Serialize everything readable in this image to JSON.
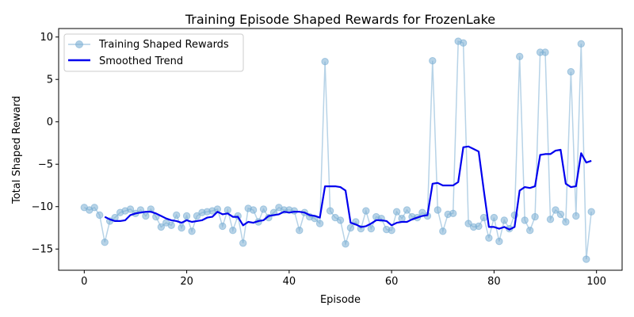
{
  "chart_data": {
    "type": "line",
    "title": "Training Episode Shaped Rewards for FrozenLake",
    "xlabel": "Episode",
    "ylabel": "Total Shaped Reward",
    "xlim": [
      -5,
      105
    ],
    "ylim": [
      -17.5,
      11
    ],
    "xticks": [
      0,
      20,
      40,
      60,
      80,
      100
    ],
    "yticks": [
      -15,
      -10,
      -5,
      0,
      5,
      10
    ],
    "grid": false,
    "legend_position": "top-left",
    "series": [
      {
        "name": "Training Shaped Rewards",
        "color": "#7bafd4",
        "marker": "circle",
        "x": [
          0,
          1,
          2,
          3,
          4,
          5,
          6,
          7,
          8,
          9,
          10,
          11,
          12,
          13,
          14,
          15,
          16,
          17,
          18,
          19,
          20,
          21,
          22,
          23,
          24,
          25,
          26,
          27,
          28,
          29,
          30,
          31,
          32,
          33,
          34,
          35,
          36,
          37,
          38,
          39,
          40,
          41,
          42,
          43,
          44,
          45,
          46,
          47,
          48,
          49,
          50,
          51,
          52,
          53,
          54,
          55,
          56,
          57,
          58,
          59,
          60,
          61,
          62,
          63,
          64,
          65,
          66,
          67,
          68,
          69,
          70,
          71,
          72,
          73,
          74,
          75,
          76,
          77,
          78,
          79,
          80,
          81,
          82,
          83,
          84,
          85,
          86,
          87,
          88,
          89,
          90,
          91,
          92,
          93,
          94,
          95,
          96,
          97,
          98,
          99
        ],
        "y": [
          -10.1,
          -10.4,
          -10.1,
          -11.0,
          -14.2,
          -11.7,
          -11.3,
          -10.7,
          -10.5,
          -10.3,
          -10.8,
          -10.4,
          -11.1,
          -10.3,
          -11.2,
          -12.4,
          -11.9,
          -12.2,
          -11.0,
          -12.5,
          -11.1,
          -12.9,
          -11.1,
          -10.7,
          -10.6,
          -10.5,
          -10.3,
          -12.3,
          -10.4,
          -12.8,
          -11.1,
          -14.3,
          -10.2,
          -10.4,
          -11.8,
          -10.3,
          -11.3,
          -10.7,
          -10.1,
          -10.4,
          -10.4,
          -10.5,
          -12.8,
          -10.7,
          -11.2,
          -11.4,
          -12.0,
          7.1,
          -10.5,
          -11.3,
          -11.6,
          -14.4,
          -12.5,
          -11.8,
          -12.6,
          -10.5,
          -12.6,
          -11.2,
          -11.4,
          -12.7,
          -12.8,
          -10.6,
          -11.4,
          -10.4,
          -11.2,
          -11.3,
          -10.7,
          -11.1,
          7.2,
          -10.4,
          -12.9,
          -10.9,
          -10.8,
          9.5,
          9.3,
          -12.0,
          -12.4,
          -12.3,
          -11.3,
          -13.7,
          -11.3,
          -14.1,
          -11.6,
          -12.6,
          -11.0,
          7.7,
          -11.6,
          -12.8,
          -11.2,
          8.2,
          8.2,
          -11.5,
          -10.4,
          -10.9,
          -11.8,
          5.9,
          -11.1,
          9.2,
          -16.2,
          -10.6
        ]
      },
      {
        "name": "Smoothed Trend",
        "color": "#0000ee",
        "x": [
          4,
          5,
          6,
          7,
          8,
          9,
          10,
          11,
          12,
          13,
          14,
          15,
          16,
          17,
          18,
          19,
          20,
          21,
          22,
          23,
          24,
          25,
          26,
          27,
          28,
          29,
          30,
          31,
          32,
          33,
          34,
          35,
          36,
          37,
          38,
          39,
          40,
          41,
          42,
          43,
          44,
          45,
          46,
          47,
          48,
          49,
          50,
          51,
          52,
          53,
          54,
          55,
          56,
          57,
          58,
          59,
          60,
          61,
          62,
          63,
          64,
          65,
          66,
          67,
          68,
          69,
          70,
          71,
          72,
          73,
          74,
          75,
          76,
          77,
          78,
          79,
          80,
          81,
          82,
          83,
          84,
          85,
          86,
          87,
          88,
          89,
          90,
          91,
          92,
          93,
          94,
          95,
          96,
          97,
          98,
          99
        ],
        "y": [
          -11.2,
          -11.5,
          -11.7,
          -11.7,
          -11.6,
          -11.0,
          -10.8,
          -10.7,
          -10.6,
          -10.6,
          -10.8,
          -11.1,
          -11.4,
          -11.6,
          -11.7,
          -11.9,
          -11.6,
          -11.8,
          -11.7,
          -11.6,
          -11.3,
          -11.2,
          -10.6,
          -10.9,
          -10.8,
          -11.2,
          -11.2,
          -12.2,
          -11.8,
          -11.9,
          -11.7,
          -11.6,
          -11.1,
          -11.0,
          -10.9,
          -10.6,
          -10.7,
          -10.6,
          -10.6,
          -10.7,
          -11.0,
          -11.1,
          -11.3,
          -7.6,
          -7.6,
          -7.6,
          -7.7,
          -8.1,
          -11.9,
          -12.1,
          -12.4,
          -12.3,
          -12.0,
          -11.6,
          -11.6,
          -11.7,
          -12.2,
          -11.9,
          -11.8,
          -11.8,
          -11.5,
          -11.3,
          -11.1,
          -11.0,
          -7.3,
          -7.2,
          -7.5,
          -7.5,
          -7.5,
          -7.1,
          -3.0,
          -2.9,
          -3.2,
          -3.5,
          -8.1,
          -12.4,
          -12.4,
          -12.6,
          -12.4,
          -12.7,
          -12.4,
          -8.1,
          -7.7,
          -7.8,
          -7.6,
          -3.9,
          -3.8,
          -3.8,
          -3.4,
          -3.3,
          -7.3,
          -7.7,
          -7.6,
          -3.7,
          -4.8,
          -4.6
        ]
      }
    ]
  }
}
